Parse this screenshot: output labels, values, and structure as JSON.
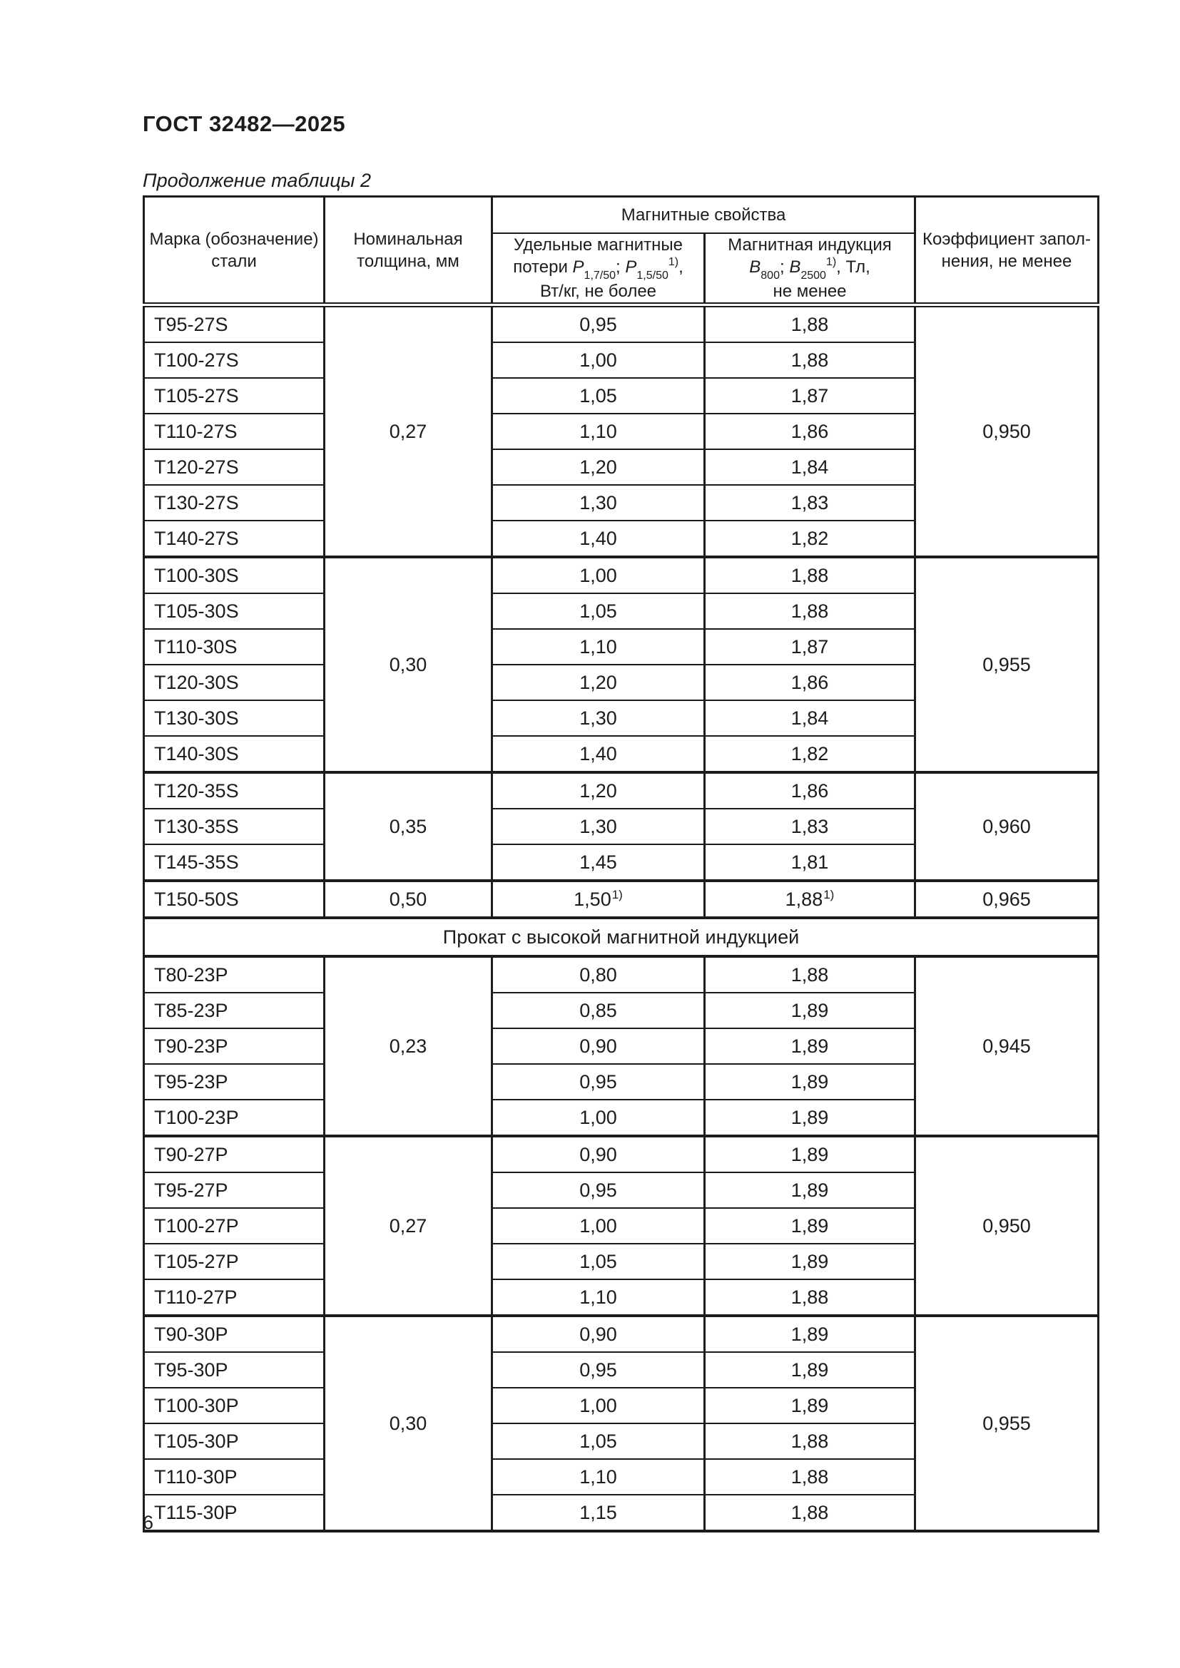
{
  "page": {
    "doc_number": "ГОСТ 32482—2025",
    "table_caption": "Продолжение таблицы 2",
    "page_number": "6"
  },
  "table": {
    "header": {
      "grade_line1": "Марка (обозначение)",
      "grade_line2": "стали",
      "thickness_line1": "Номинальная",
      "thickness_line2": "толщина, мм",
      "magnetic": "Магнитные свойства",
      "losses": {
        "line1": "Удельные магнитные",
        "prefix": "потери ",
        "sym1": "P",
        "sub1": "1,7/50",
        "sep": "; ",
        "sym2": "P",
        "sub2": "1,5/50",
        "sup": "1)",
        "suffix": ",",
        "line3": "Вт/кг, не более"
      },
      "induction": {
        "line1": "Магнитная индукция",
        "sym1": "B",
        "sub1": "800",
        "sep": "; ",
        "sym2": "B",
        "sub2": "2500",
        "sup": "1)",
        "suffix": ", Тл,",
        "line3": "не менее"
      },
      "fill_line1": "Коэффициент запол-",
      "fill_line2": "нения, не менее"
    },
    "sections": [
      {
        "label": "",
        "groups": [
          {
            "thickness": "0,27",
            "fill": "0,950",
            "rows": [
              {
                "grade": "T95-27S",
                "loss": "0,95",
                "ind": "1,88"
              },
              {
                "grade": "T100-27S",
                "loss": "1,00",
                "ind": "1,88"
              },
              {
                "grade": "T105-27S",
                "loss": "1,05",
                "ind": "1,87"
              },
              {
                "grade": "T110-27S",
                "loss": "1,10",
                "ind": "1,86"
              },
              {
                "grade": "T120-27S",
                "loss": "1,20",
                "ind": "1,84"
              },
              {
                "grade": "T130-27S",
                "loss": "1,30",
                "ind": "1,83"
              },
              {
                "grade": "T140-27S",
                "loss": "1,40",
                "ind": "1,82"
              }
            ]
          },
          {
            "thickness": "0,30",
            "fill": "0,955",
            "rows": [
              {
                "grade": "T100-30S",
                "loss": "1,00",
                "ind": "1,88"
              },
              {
                "grade": "T105-30S",
                "loss": "1,05",
                "ind": "1,88"
              },
              {
                "grade": "T110-30S",
                "loss": "1,10",
                "ind": "1,87"
              },
              {
                "grade": "T120-30S",
                "loss": "1,20",
                "ind": "1,86"
              },
              {
                "grade": "T130-30S",
                "loss": "1,30",
                "ind": "1,84"
              },
              {
                "grade": "T140-30S",
                "loss": "1,40",
                "ind": "1,82"
              }
            ]
          },
          {
            "thickness": "0,35",
            "fill": "0,960",
            "rows": [
              {
                "grade": "T120-35S",
                "loss": "1,20",
                "ind": "1,86"
              },
              {
                "grade": "T130-35S",
                "loss": "1,30",
                "ind": "1,83"
              },
              {
                "grade": "T145-35S",
                "loss": "1,45",
                "ind": "1,81"
              }
            ]
          },
          {
            "thickness": "0,50",
            "fill": "0,965",
            "rows": [
              {
                "grade": "T150-50S",
                "loss": "1,50",
                "loss_sup": "1)",
                "ind": "1,88",
                "ind_sup": "1)"
              }
            ]
          }
        ]
      },
      {
        "label": "Прокат с высокой магнитной индукцией",
        "groups": [
          {
            "thickness": "0,23",
            "fill": "0,945",
            "rows": [
              {
                "grade": "T80-23P",
                "loss": "0,80",
                "ind": "1,88"
              },
              {
                "grade": "T85-23P",
                "loss": "0,85",
                "ind": "1,89"
              },
              {
                "grade": "T90-23P",
                "loss": "0,90",
                "ind": "1,89"
              },
              {
                "grade": "T95-23P",
                "loss": "0,95",
                "ind": "1,89"
              },
              {
                "grade": "T100-23P",
                "loss": "1,00",
                "ind": "1,89"
              }
            ]
          },
          {
            "thickness": "0,27",
            "fill": "0,950",
            "rows": [
              {
                "grade": "T90-27P",
                "loss": "0,90",
                "ind": "1,89"
              },
              {
                "grade": "T95-27P",
                "loss": "0,95",
                "ind": "1,89"
              },
              {
                "grade": "T100-27P",
                "loss": "1,00",
                "ind": "1,89"
              },
              {
                "grade": "T105-27P",
                "loss": "1,05",
                "ind": "1,89"
              },
              {
                "grade": "T110-27P",
                "loss": "1,10",
                "ind": "1,88"
              }
            ]
          },
          {
            "thickness": "0,30",
            "fill": "0,955",
            "rows": [
              {
                "grade": "T90-30P",
                "loss": "0,90",
                "ind": "1,89"
              },
              {
                "grade": "T95-30P",
                "loss": "0,95",
                "ind": "1,89"
              },
              {
                "grade": "T100-30P",
                "loss": "1,00",
                "ind": "1,89"
              },
              {
                "grade": "T105-30P",
                "loss": "1,05",
                "ind": "1,88"
              },
              {
                "grade": "T110-30P",
                "loss": "1,10",
                "ind": "1,88"
              },
              {
                "grade": "T115-30P",
                "loss": "1,15",
                "ind": "1,88"
              }
            ]
          }
        ]
      }
    ]
  }
}
